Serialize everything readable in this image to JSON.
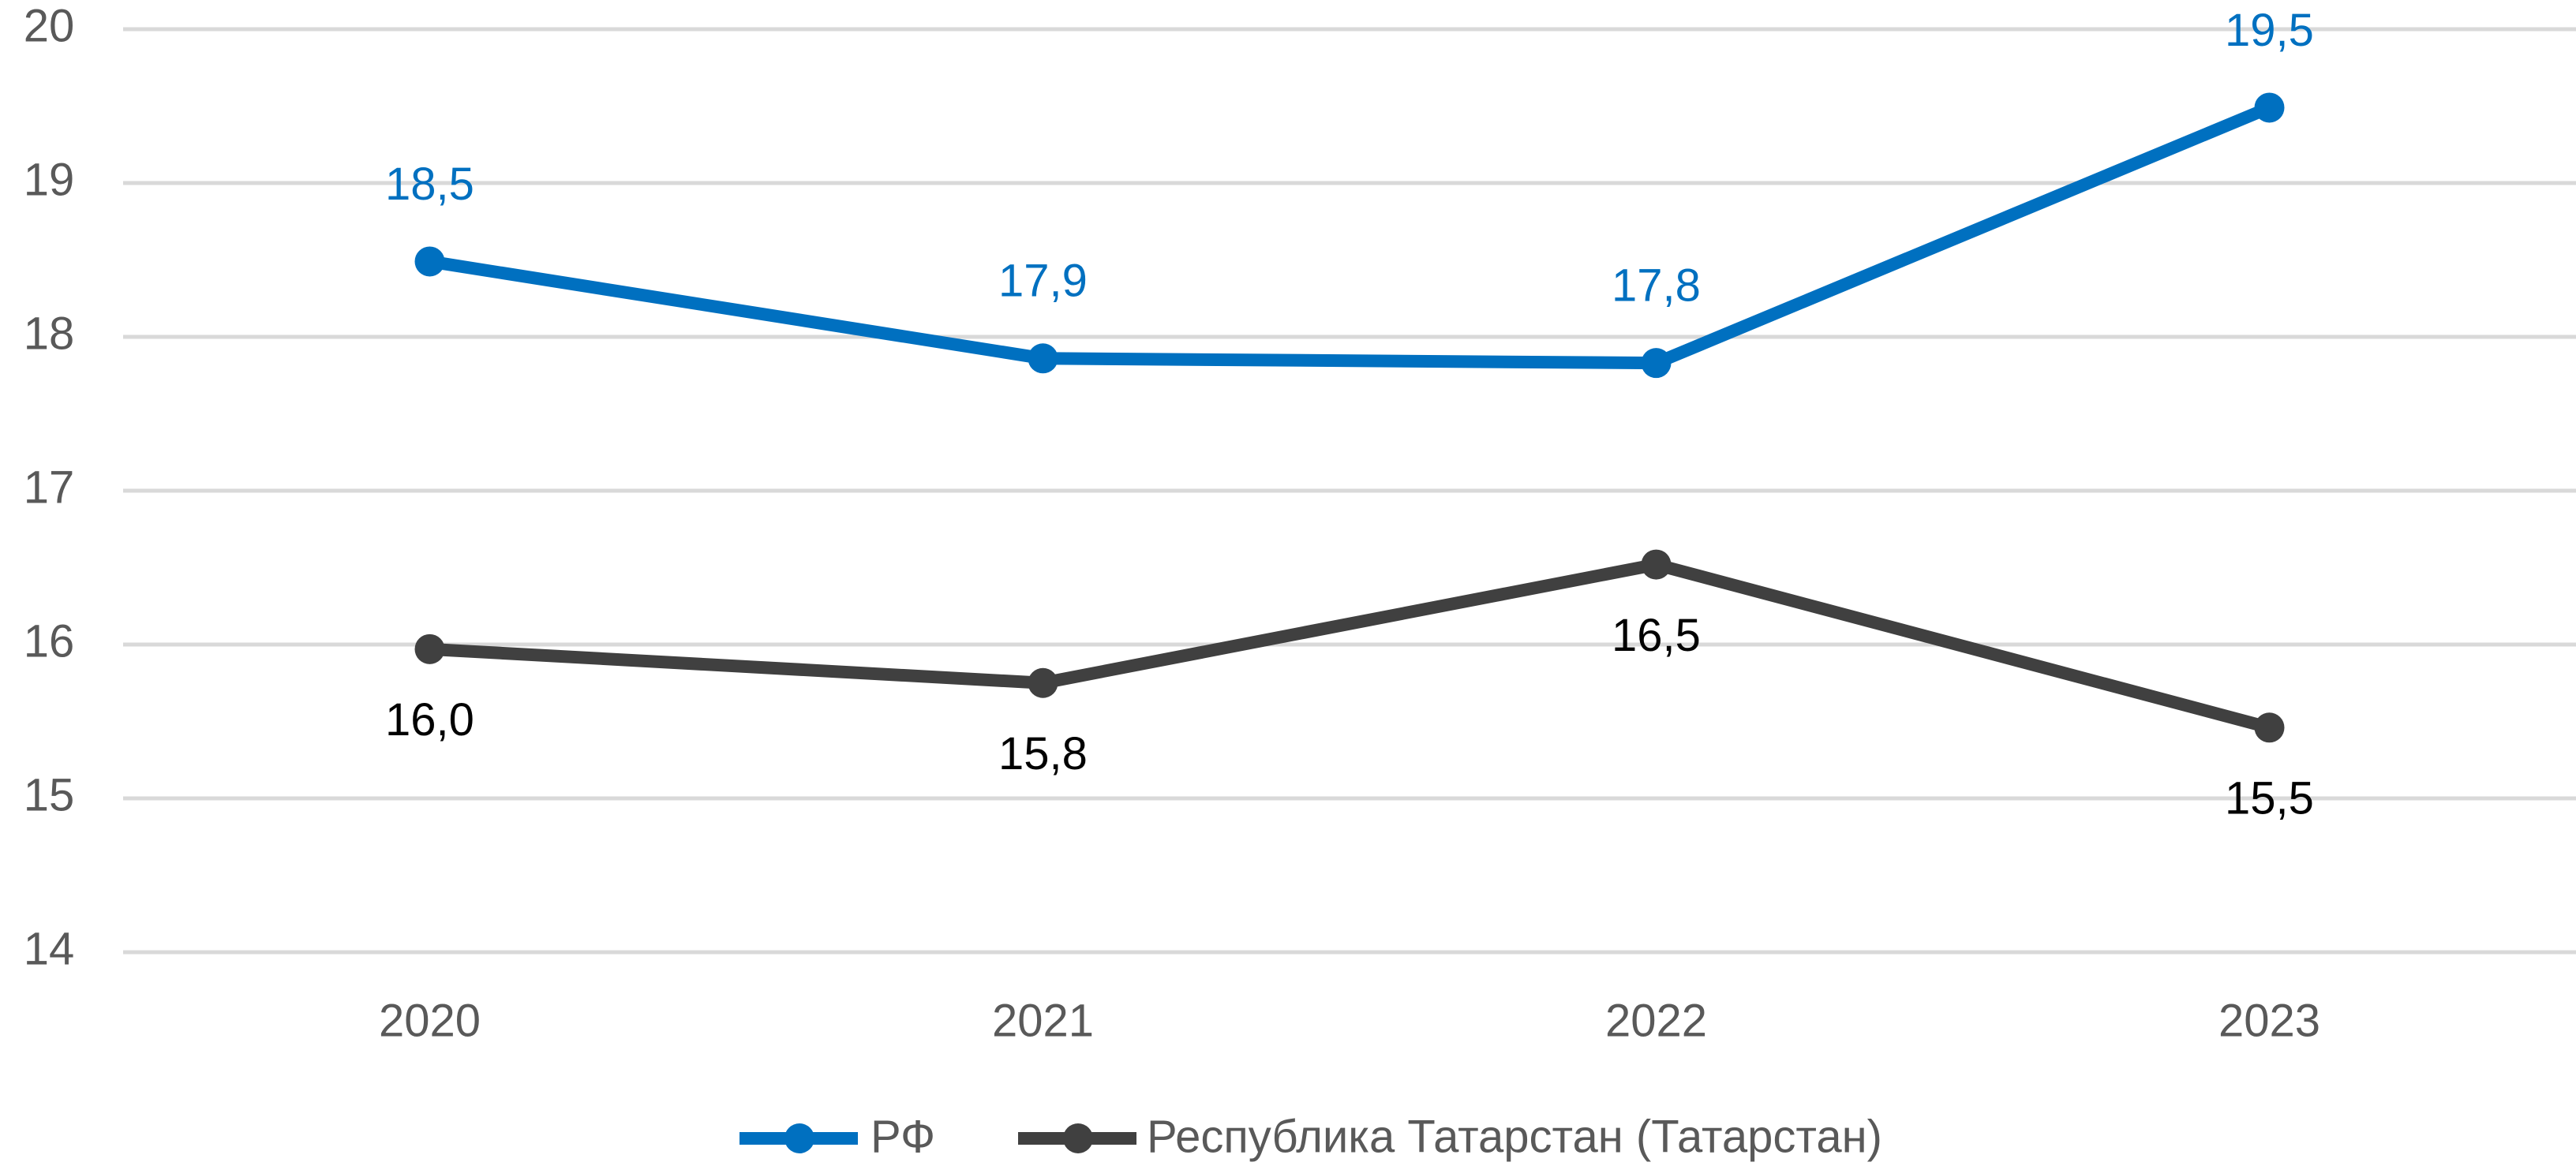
{
  "chart_data": {
    "type": "line",
    "categories": [
      "2020",
      "2021",
      "2022",
      "2023"
    ],
    "series": [
      {
        "name": "РФ",
        "color": "#0070c0",
        "values": [
          18.49,
          17.86,
          17.83,
          19.49
        ],
        "value_labels": [
          "18,5",
          "17,9",
          "17,8",
          "19,5"
        ]
      },
      {
        "name": "Республика Татарстан (Татарстан)",
        "color": "#404040",
        "values": [
          15.97,
          15.75,
          16.52,
          15.46
        ],
        "value_labels": [
          "16,0",
          "15,8",
          "16,5",
          "15,5"
        ]
      }
    ],
    "ylim": [
      14,
      20
    ],
    "yticks": [
      14,
      15,
      16,
      17,
      18,
      19,
      20
    ],
    "grid": true,
    "legend": "bottom"
  }
}
